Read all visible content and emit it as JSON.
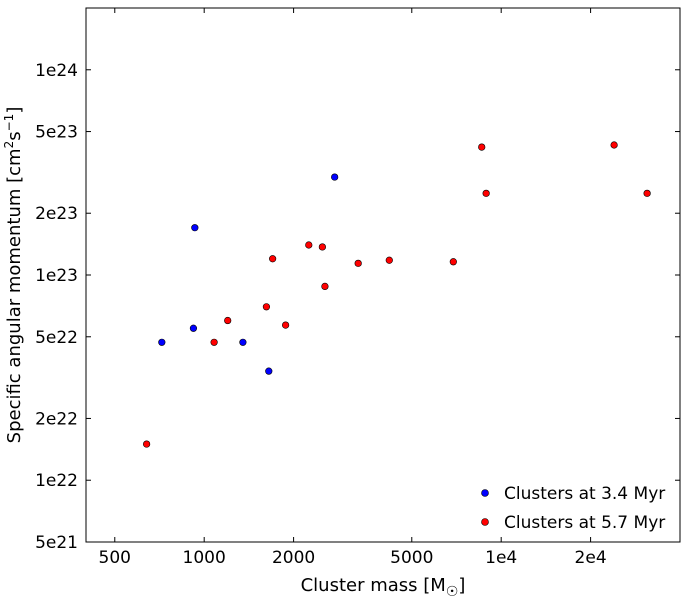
{
  "chart_data": {
    "type": "scatter",
    "xlabel": "Cluster mass [M",
    "xlabel_symbol": "☉",
    "xlabel_suffix": "]",
    "ylabel": "Specific angular momentum [cm",
    "ylabel_sup1": "2",
    "ylabel_mid": "s",
    "ylabel_sup2": "−1",
    "ylabel_suffix": "]",
    "x_scale": "log",
    "y_scale": "log",
    "xlim": [
      400,
      40000
    ],
    "ylim": [
      5e+21,
      2e+24
    ],
    "x_ticks": [
      {
        "value": 500,
        "label": "500"
      },
      {
        "value": 1000,
        "label": "1000"
      },
      {
        "value": 2000,
        "label": "2000"
      },
      {
        "value": 5000,
        "label": "5000"
      },
      {
        "value": 10000,
        "label": "1e4"
      },
      {
        "value": 20000,
        "label": "2e4"
      }
    ],
    "y_ticks": [
      {
        "value": 5e+21,
        "label": "5e21"
      },
      {
        "value": 1e+22,
        "label": "1e22"
      },
      {
        "value": 2e+22,
        "label": "2e22"
      },
      {
        "value": 5e+22,
        "label": "5e22"
      },
      {
        "value": 1e+23,
        "label": "1e23"
      },
      {
        "value": 2e+23,
        "label": "2e23"
      },
      {
        "value": 5e+23,
        "label": "5e23"
      },
      {
        "value": 1e+24,
        "label": "1e24"
      }
    ],
    "legend_position": "bottom-right",
    "grid": false,
    "series": [
      {
        "name": "Clusters at 3.4 Myr",
        "color": "#0000ff",
        "points": [
          {
            "x": 720,
            "y": 4.7e+22
          },
          {
            "x": 920,
            "y": 5.5e+22
          },
          {
            "x": 930,
            "y": 1.7e+23
          },
          {
            "x": 1350,
            "y": 4.7e+22
          },
          {
            "x": 1650,
            "y": 3.4e+22
          },
          {
            "x": 2750,
            "y": 3e+23
          }
        ]
      },
      {
        "name": "Clusters at 5.7 Myr",
        "color": "#ff0000",
        "points": [
          {
            "x": 640,
            "y": 1.5e+22
          },
          {
            "x": 1080,
            "y": 4.7e+22
          },
          {
            "x": 1200,
            "y": 6e+22
          },
          {
            "x": 1620,
            "y": 7e+22
          },
          {
            "x": 1700,
            "y": 1.2e+23
          },
          {
            "x": 1880,
            "y": 5.7e+22
          },
          {
            "x": 2250,
            "y": 1.4e+23
          },
          {
            "x": 2500,
            "y": 1.37e+23
          },
          {
            "x": 2550,
            "y": 8.8e+22
          },
          {
            "x": 3300,
            "y": 1.14e+23
          },
          {
            "x": 4200,
            "y": 1.18e+23
          },
          {
            "x": 6900,
            "y": 1.16e+23
          },
          {
            "x": 8600,
            "y": 4.2e+23
          },
          {
            "x": 8900,
            "y": 2.5e+23
          },
          {
            "x": 24000,
            "y": 4.3e+23
          },
          {
            "x": 31000,
            "y": 2.5e+23
          }
        ]
      }
    ]
  }
}
